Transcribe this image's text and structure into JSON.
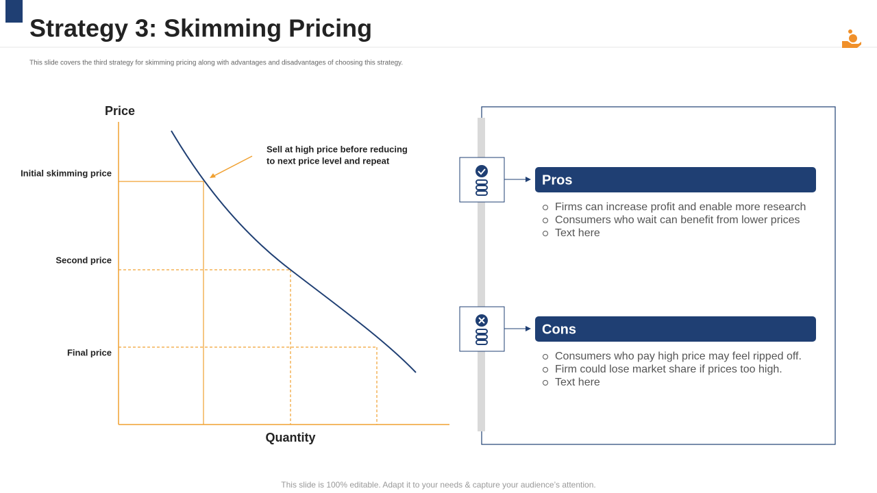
{
  "header": {
    "title": "Strategy 3: Skimming Pricing",
    "subtitle": "This slide covers the third strategy for skimming pricing along with advantages and disadvantages of choosing this strategy."
  },
  "diagram": {
    "y_axis_label": "Price",
    "x_axis_label": "Quantity",
    "price_levels": [
      "Initial skimming price",
      "Second price",
      "Final price"
    ],
    "annotation": [
      "Sell at high price before reducing",
      "to next price level and repeat"
    ]
  },
  "pros": {
    "title": "Pros",
    "items": [
      "Firms can increase profit and enable more research",
      "Consumers who wait can benefit from lower prices",
      "Text here"
    ]
  },
  "cons": {
    "title": "Cons",
    "items": [
      "Consumers who pay high price may feel ripped off.",
      "Firm could lose market share if prices too high.",
      "Text here"
    ]
  },
  "footer": "This slide is 100% editable. Adapt it to your needs & capture your audience’s attention."
}
